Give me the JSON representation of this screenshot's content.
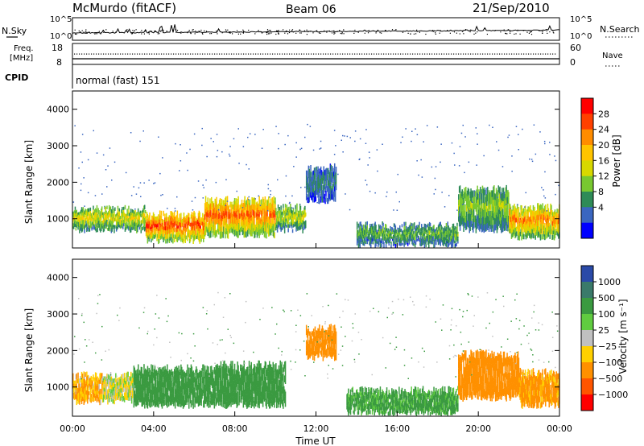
{
  "header": {
    "station": "McMurdo (fitACF)",
    "beam": "Beam 06",
    "date": "21/Sep/2010"
  },
  "noise_panel": {
    "left_label": "N.Sky",
    "right_label": "N.Search",
    "ticks_left": [
      "10^5",
      "10^0"
    ],
    "ticks_right": [
      "10^5",
      "10^0"
    ]
  },
  "freq_panel": {
    "left_label_1": "Freq.",
    "left_label_2": "[MHz]",
    "right_label": "Nave",
    "ticks_left": [
      "18",
      "8"
    ],
    "ticks_right": [
      "60",
      "0"
    ]
  },
  "cpid": {
    "label": "CPID",
    "value": "normal (fast) 151"
  },
  "power_colorbar": {
    "title": "Power [dB]",
    "labels": [
      "28",
      "24",
      "20",
      "16",
      "12",
      "8",
      "4"
    ],
    "colors": [
      "#ff0000",
      "#ff4000",
      "#ff8c00",
      "#ffc400",
      "#d8d800",
      "#78c830",
      "#2e8b57",
      "#3a66c0",
      "#0000ff"
    ]
  },
  "velocity_colorbar": {
    "title": "Velocity [m s⁻¹]",
    "labels": [
      "1000",
      "500",
      "100",
      "25",
      "−25",
      "−100",
      "−500",
      "−1000"
    ],
    "colors": [
      "#2a4aa8",
      "#3a7a6a",
      "#3a9a40",
      "#60cc40",
      "#c0c0c0",
      "#ffd000",
      "#ff9000",
      "#ff5500",
      "#ff0000"
    ]
  },
  "chart_data": [
    {
      "type": "heatmap",
      "name": "power",
      "ylabel": "Slant Range [km]",
      "yticks": [
        "1000",
        "2000",
        "3000",
        "4000"
      ],
      "ylim": [
        200,
        4500
      ],
      "xlim": [
        0,
        24
      ],
      "xticks": [
        "00:00",
        "04:00",
        "08:00",
        "12:00",
        "16:00",
        "20:00",
        "00:00"
      ],
      "zlim": [
        0,
        30
      ],
      "bands": [
        {
          "t0": 0.0,
          "t1": 3.6,
          "r0": 700,
          "r1": 1250,
          "p": 16
        },
        {
          "t0": 3.6,
          "t1": 6.5,
          "r0": 400,
          "r1": 1100,
          "p": 26
        },
        {
          "t0": 6.5,
          "t1": 10.0,
          "r0": 550,
          "r1": 1500,
          "p": 24
        },
        {
          "t0": 10.0,
          "t1": 11.5,
          "r0": 700,
          "r1": 1300,
          "p": 14
        },
        {
          "t0": 11.5,
          "t1": 13.0,
          "r0": 1500,
          "r1": 2400,
          "p": 6
        },
        {
          "t0": 14.0,
          "t1": 19.0,
          "r0": 300,
          "r1": 800,
          "p": 10
        },
        {
          "t0": 19.0,
          "t1": 21.5,
          "r0": 700,
          "r1": 1800,
          "p": 12
        },
        {
          "t0": 21.5,
          "t1": 24.0,
          "r0": 500,
          "r1": 1300,
          "p": 22
        }
      ]
    },
    {
      "type": "heatmap",
      "name": "velocity",
      "ylabel": "Slant Range [km]",
      "yticks": [
        "1000",
        "2000",
        "3000",
        "4000"
      ],
      "ylim": [
        200,
        4500
      ],
      "xlim": [
        0,
        24
      ],
      "xticks": [
        "00:00",
        "04:00",
        "08:00",
        "12:00",
        "16:00",
        "20:00",
        "00:00"
      ],
      "xlabel": "Time UT",
      "bands": [
        {
          "t0": 0.0,
          "t1": 1.5,
          "r0": 600,
          "r1": 1300,
          "v": -100
        },
        {
          "t0": 1.5,
          "t1": 3.0,
          "r0": 600,
          "r1": 1300,
          "v": 0
        },
        {
          "t0": 3.0,
          "t1": 7.0,
          "r0": 500,
          "r1": 1500,
          "v": 200
        },
        {
          "t0": 7.0,
          "t1": 10.5,
          "r0": 500,
          "r1": 1600,
          "v": 300
        },
        {
          "t0": 11.5,
          "t1": 13.0,
          "r0": 1800,
          "r1": 2600,
          "v": -300
        },
        {
          "t0": 13.5,
          "t1": 19.0,
          "r0": 300,
          "r1": 900,
          "v": 150
        },
        {
          "t0": 19.0,
          "t1": 22.0,
          "r0": 700,
          "r1": 1900,
          "v": -200
        },
        {
          "t0": 22.0,
          "t1": 24.0,
          "r0": 500,
          "r1": 1400,
          "v": -150
        }
      ]
    }
  ]
}
